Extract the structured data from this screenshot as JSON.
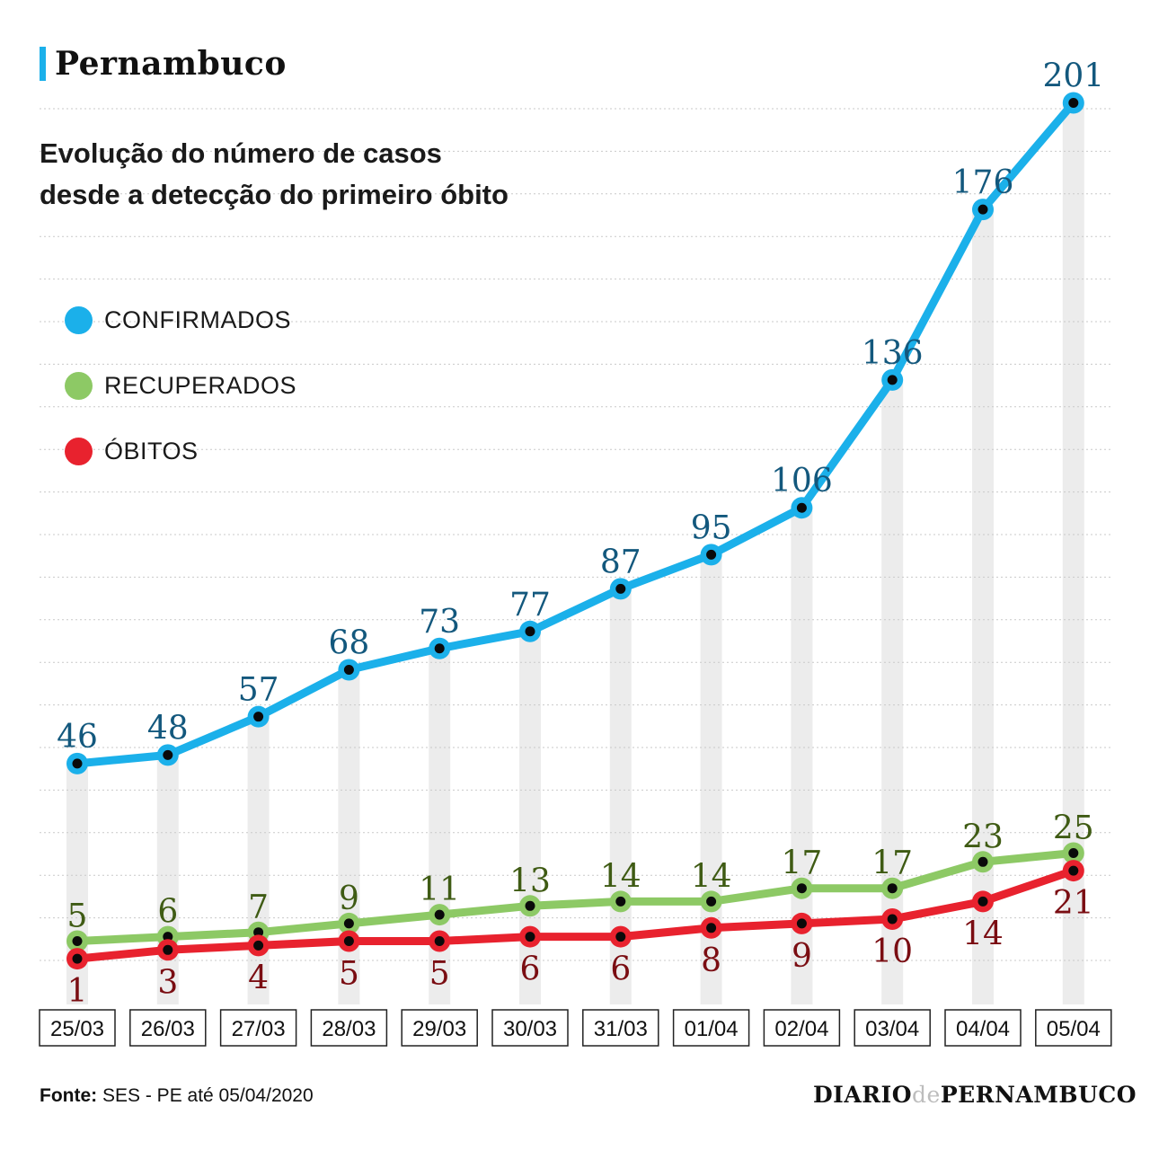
{
  "header": {
    "region": "Pernambuco",
    "title_line1": "Evolução do número de casos",
    "title_line2": "desde a detecção do primeiro óbito"
  },
  "legend": [
    {
      "label": "CONFIRMADOS",
      "color": "#1bb0ea"
    },
    {
      "label": "RECUPERADOS",
      "color": "#8dc965"
    },
    {
      "label": "ÓBITOS",
      "color": "#e8222e"
    }
  ],
  "chart_data": {
    "type": "line",
    "categories": [
      "25/03",
      "26/03",
      "27/03",
      "28/03",
      "29/03",
      "30/03",
      "31/03",
      "01/04",
      "02/04",
      "03/04",
      "04/04",
      "05/04"
    ],
    "series": [
      {
        "name": "CONFIRMADOS",
        "color": "#1bb0ea",
        "label_color": "#13587d",
        "values": [
          46,
          48,
          57,
          68,
          73,
          77,
          87,
          95,
          106,
          136,
          176,
          201
        ]
      },
      {
        "name": "RECUPERADOS",
        "color": "#8dc965",
        "label_color": "#3f5b14",
        "values": [
          5,
          6,
          7,
          9,
          11,
          13,
          14,
          14,
          17,
          17,
          23,
          25
        ]
      },
      {
        "name": "ÓBITOS",
        "color": "#e8222e",
        "label_color": "#7a0d12",
        "values": [
          1,
          3,
          4,
          5,
          5,
          6,
          6,
          8,
          9,
          10,
          14,
          21
        ]
      }
    ],
    "title": "Evolução do número de casos desde a detecção do primeiro óbito",
    "xlabel": "",
    "ylabel": "",
    "ylim": [
      0,
      210
    ],
    "grid": true,
    "legend_position": "top-left"
  },
  "footer": {
    "source_label": "Fonte:",
    "source_text": "SES - PE até 05/04/2020",
    "brand_left": "DIARIO",
    "brand_mid": "de",
    "brand_right": "PERNAMBUCO"
  }
}
